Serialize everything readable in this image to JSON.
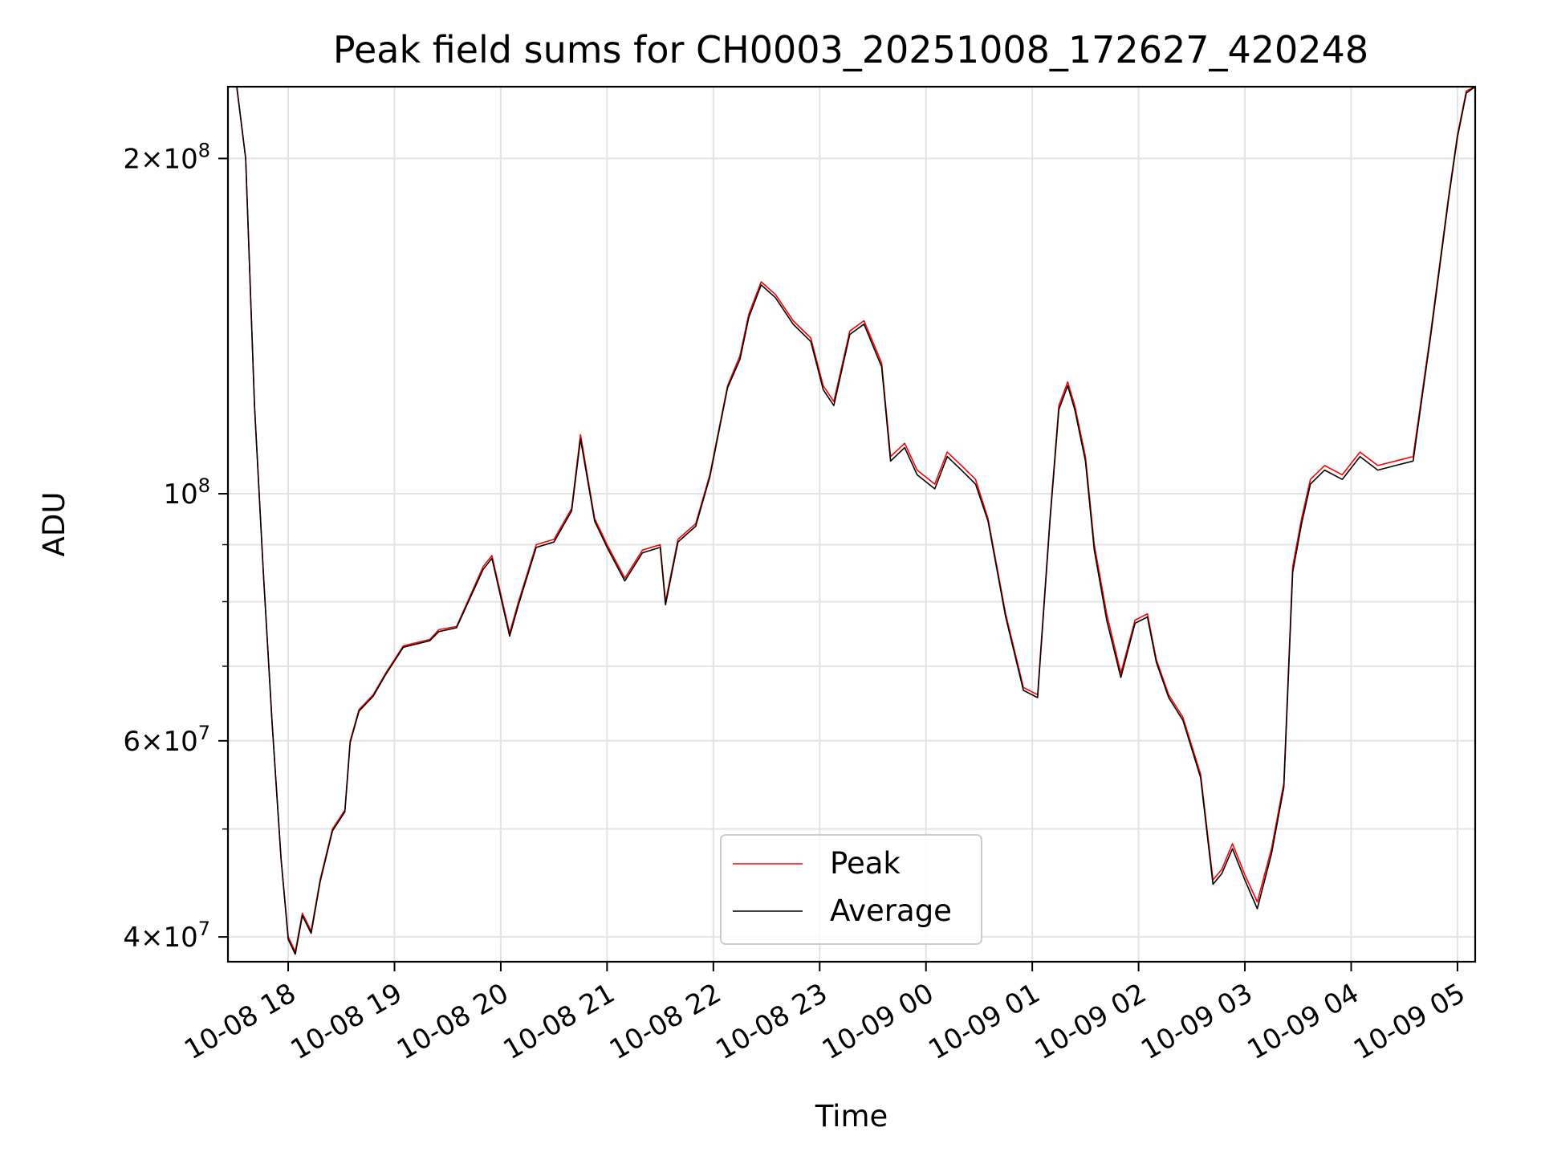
{
  "chart_data": {
    "type": "line",
    "title": "Peak field sums for CH0003_20251008_172627_420248",
    "xlabel": "Time",
    "ylabel": "ADU",
    "yscale": "log",
    "ylim": [
      38000000,
      232000000
    ],
    "xlim": [
      "2025-10-08 17:26",
      "2025-10-09 05:10"
    ],
    "grid": true,
    "legend_position": "bottom-center",
    "x_ticks": [
      {
        "value": "2025-10-08 18:00",
        "label": "10-08 18"
      },
      {
        "value": "2025-10-08 19:00",
        "label": "10-08 19"
      },
      {
        "value": "2025-10-08 20:00",
        "label": "10-08 20"
      },
      {
        "value": "2025-10-08 21:00",
        "label": "10-08 21"
      },
      {
        "value": "2025-10-08 22:00",
        "label": "10-08 22"
      },
      {
        "value": "2025-10-08 23:00",
        "label": "10-08 23"
      },
      {
        "value": "2025-10-09 00:00",
        "label": "10-09 00"
      },
      {
        "value": "2025-10-09 01:00",
        "label": "10-09 01"
      },
      {
        "value": "2025-10-09 02:00",
        "label": "10-09 02"
      },
      {
        "value": "2025-10-09 03:00",
        "label": "10-09 03"
      },
      {
        "value": "2025-10-09 04:00",
        "label": "10-09 04"
      },
      {
        "value": "2025-10-09 05:00",
        "label": "10-09 05"
      }
    ],
    "y_ticks_major": [
      {
        "value": 40000000,
        "mant": "4",
        "exp": "7"
      },
      {
        "value": 60000000,
        "mant": "6",
        "exp": "7"
      },
      {
        "value": 100000000,
        "mant": "",
        "exp": "8"
      },
      {
        "value": 200000000,
        "mant": "2",
        "exp": "8"
      }
    ],
    "y_ticks_minor": [
      50000000,
      70000000,
      80000000,
      90000000
    ],
    "x": [
      "2025-10-08 17:26",
      "2025-10-08 17:31",
      "2025-10-08 17:36",
      "2025-10-08 17:41",
      "2025-10-08 17:46",
      "2025-10-08 17:51",
      "2025-10-08 17:56",
      "2025-10-08 18:00",
      "2025-10-08 18:04",
      "2025-10-08 18:08",
      "2025-10-08 18:13",
      "2025-10-08 18:18",
      "2025-10-08 18:25",
      "2025-10-08 18:32",
      "2025-10-08 18:35",
      "2025-10-08 18:40",
      "2025-10-08 18:48",
      "2025-10-08 18:55",
      "2025-10-08 19:05",
      "2025-10-08 19:20",
      "2025-10-08 19:25",
      "2025-10-08 19:35",
      "2025-10-08 19:50",
      "2025-10-08 19:55",
      "2025-10-08 20:05",
      "2025-10-08 20:10",
      "2025-10-08 20:20",
      "2025-10-08 20:30",
      "2025-10-08 20:40",
      "2025-10-08 20:45",
      "2025-10-08 20:53",
      "2025-10-08 21:00",
      "2025-10-08 21:10",
      "2025-10-08 21:20",
      "2025-10-08 21:30",
      "2025-10-08 21:33",
      "2025-10-08 21:40",
      "2025-10-08 21:50",
      "2025-10-08 21:58",
      "2025-10-08 22:08",
      "2025-10-08 22:15",
      "2025-10-08 22:20",
      "2025-10-08 22:27",
      "2025-10-08 22:35",
      "2025-10-08 22:45",
      "2025-10-08 22:55",
      "2025-10-08 23:02",
      "2025-10-08 23:08",
      "2025-10-08 23:17",
      "2025-10-08 23:25",
      "2025-10-08 23:35",
      "2025-10-08 23:40",
      "2025-10-08 23:48",
      "2025-10-08 23:55",
      "2025-10-09 00:05",
      "2025-10-09 00:12",
      "2025-10-09 00:20",
      "2025-10-09 00:28",
      "2025-10-09 00:35",
      "2025-10-09 00:45",
      "2025-10-09 00:55",
      "2025-10-09 01:03",
      "2025-10-09 01:10",
      "2025-10-09 01:15",
      "2025-10-09 01:20",
      "2025-10-09 01:24",
      "2025-10-09 01:30",
      "2025-10-09 01:35",
      "2025-10-09 01:42",
      "2025-10-09 01:50",
      "2025-10-09 01:58",
      "2025-10-09 02:05",
      "2025-10-09 02:10",
      "2025-10-09 02:17",
      "2025-10-09 02:25",
      "2025-10-09 02:35",
      "2025-10-09 02:42",
      "2025-10-09 02:47",
      "2025-10-09 02:53",
      "2025-10-09 03:00",
      "2025-10-09 03:07",
      "2025-10-09 03:15",
      "2025-10-09 03:22",
      "2025-10-09 03:27",
      "2025-10-09 03:32",
      "2025-10-09 03:37",
      "2025-10-09 03:45",
      "2025-10-09 03:55",
      "2025-10-09 04:05",
      "2025-10-09 04:15",
      "2025-10-09 04:25",
      "2025-10-09 04:35",
      "2025-10-09 04:45",
      "2025-10-09 04:55",
      "2025-10-09 05:00",
      "2025-10-09 05:05",
      "2025-10-09 05:10"
    ],
    "series": [
      {
        "name": "Peak",
        "color": "#ff0000",
        "values": [
          232000000,
          232000000,
          200000000,
          120000000,
          85000000,
          62000000,
          47000000,
          40000000,
          38800000,
          42000000,
          40500000,
          45000000,
          50000000,
          52000000,
          60000000,
          64000000,
          66000000,
          69000000,
          73000000,
          74000000,
          75500000,
          76000000,
          86000000,
          88000000,
          75000000,
          80000000,
          90000000,
          91000000,
          97000000,
          113000000,
          95000000,
          90000000,
          84000000,
          89000000,
          90000000,
          80000000,
          91000000,
          94000000,
          104000000,
          125000000,
          133000000,
          145000000,
          155000000,
          151000000,
          143000000,
          138000000,
          125000000,
          121000000,
          140000000,
          143000000,
          131000000,
          108000000,
          111000000,
          105000000,
          102000000,
          109000000,
          106000000,
          103000000,
          95000000,
          78000000,
          67000000,
          66000000,
          95000000,
          120000000,
          126000000,
          120000000,
          108000000,
          90000000,
          78000000,
          69000000,
          77000000,
          78000000,
          71000000,
          66000000,
          63000000,
          56000000,
          45000000,
          46000000,
          48500000,
          45500000,
          43000000,
          48000000,
          55000000,
          86000000,
          95000000,
          103000000,
          106000000,
          104000000,
          109000000,
          106000000,
          107000000,
          108000000,
          140000000,
          185000000,
          210000000,
          230000000,
          232000000
        ]
      },
      {
        "name": "Average",
        "color": "#000000",
        "values": [
          232000000,
          232000000,
          200000000,
          120000000,
          85000000,
          62000000,
          47000000,
          39800000,
          38600000,
          41800000,
          40300000,
          44800000,
          49800000,
          51800000,
          59800000,
          63800000,
          65800000,
          68800000,
          72800000,
          73800000,
          75200000,
          75800000,
          85500000,
          87500000,
          74500000,
          79500000,
          89500000,
          90500000,
          96500000,
          112000000,
          94500000,
          89500000,
          83500000,
          88500000,
          89500000,
          79500000,
          90500000,
          93500000,
          103500000,
          124500000,
          132000000,
          144000000,
          154000000,
          150000000,
          142000000,
          137000000,
          124000000,
          120000000,
          139000000,
          142000000,
          130000000,
          107000000,
          110000000,
          104000000,
          101000000,
          108000000,
          105000000,
          102000000,
          94500000,
          77500000,
          66600000,
          65600000,
          94500000,
          119000000,
          125000000,
          119000000,
          107000000,
          89000000,
          77000000,
          68400000,
          76500000,
          77500000,
          70600000,
          65600000,
          62600000,
          55600000,
          44600000,
          45600000,
          48000000,
          45000000,
          42400000,
          47500000,
          54500000,
          85000000,
          94000000,
          102000000,
          105000000,
          103000000,
          108000000,
          105000000,
          106000000,
          107000000,
          139000000,
          184000000,
          209000000,
          229000000,
          232000000
        ]
      }
    ]
  }
}
